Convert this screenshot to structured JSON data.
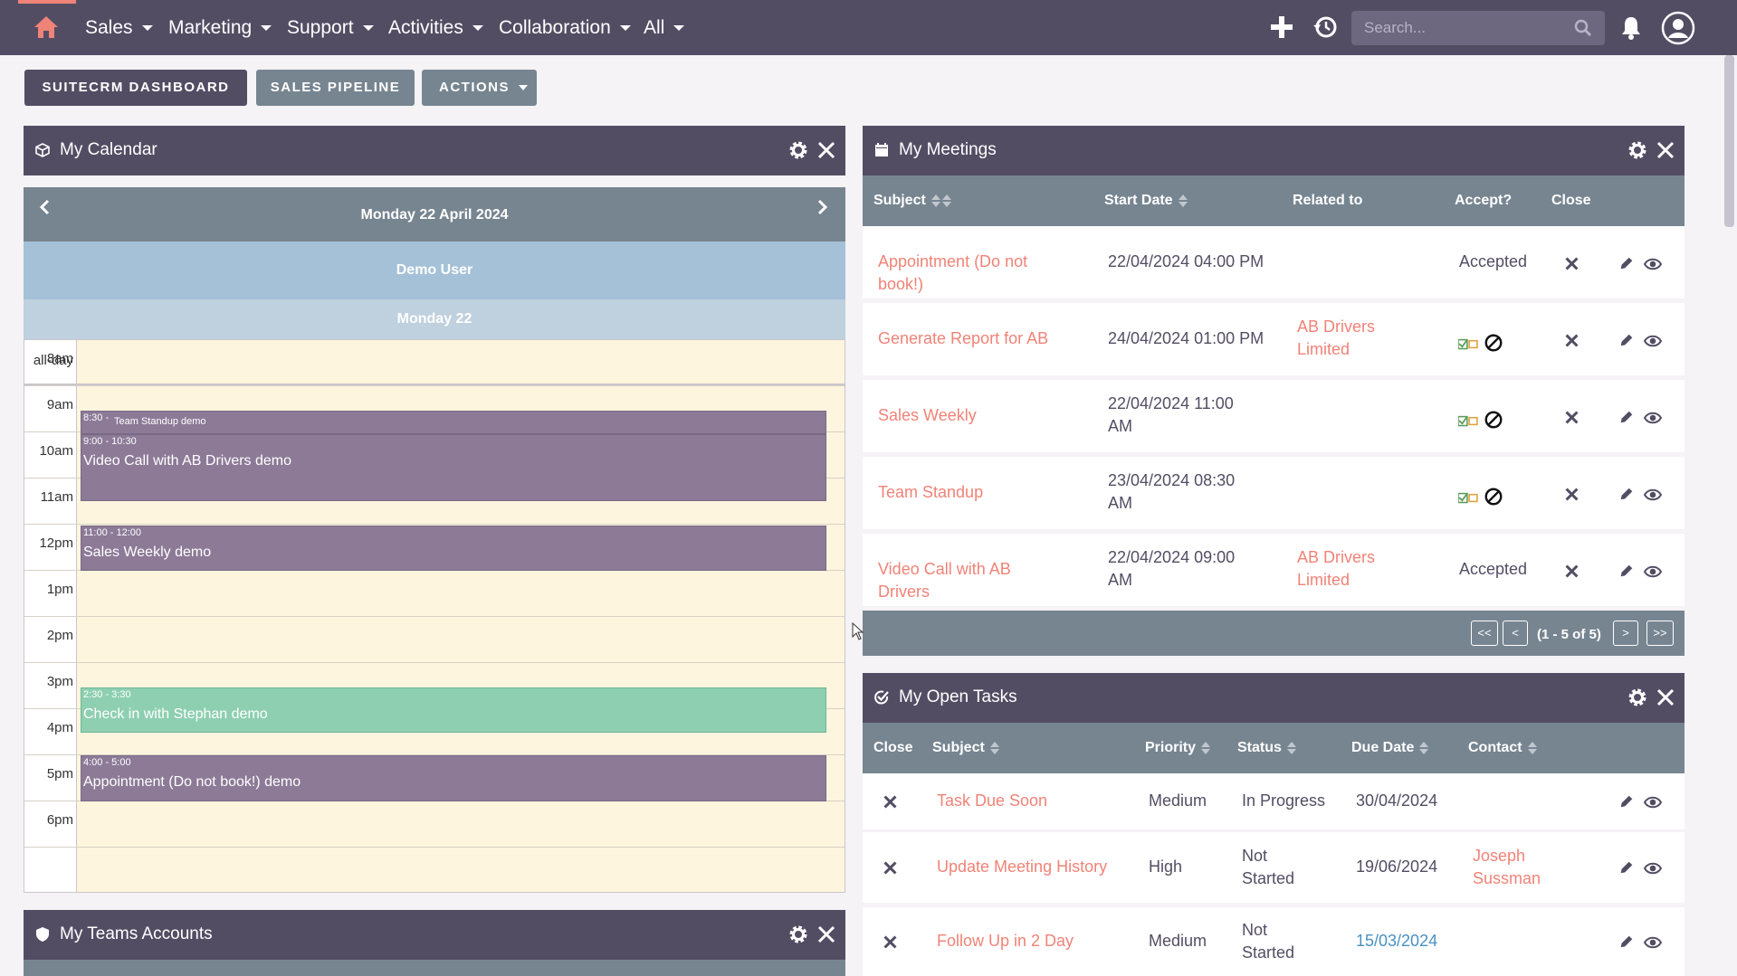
{
  "nav": {
    "menus": [
      "Sales",
      "Marketing",
      "Support",
      "Activities",
      "Collaboration",
      "All"
    ],
    "search_placeholder": "Search..."
  },
  "actions": {
    "dashboard": "SUITECRM DASHBOARD",
    "pipeline": "SALES PIPELINE",
    "actions": "ACTIONS"
  },
  "calendar": {
    "title": "My Calendar",
    "date": "Monday 22 April 2024",
    "user": "Demo User",
    "day": "Monday 22",
    "allday_label": "all-day",
    "hours": [
      "8am",
      "9am",
      "10am",
      "11am",
      "12pm",
      "1pm",
      "2pm",
      "3pm",
      "4pm",
      "5pm",
      "6pm"
    ],
    "events": [
      {
        "time": "8:30 -",
        "title": "Team Standup demo",
        "color": "#8c7a97"
      },
      {
        "time": "9:00 - 10:30",
        "title": "Video Call with AB Drivers demo",
        "color": "#8c7a97"
      },
      {
        "time": "11:00 - 12:00",
        "title": "Sales Weekly demo",
        "color": "#8c7a97"
      },
      {
        "time": "2:30 - 3:30",
        "title": "Check in with Stephan demo",
        "color": "#8ecfb1"
      },
      {
        "time": "4:00 - 5:00",
        "title": "Appointment (Do not book!) demo",
        "color": "#8c7a97"
      }
    ]
  },
  "meetings": {
    "title": "My Meetings",
    "columns": {
      "subject": "Subject",
      "start": "Start Date",
      "related": "Related to",
      "accept": "Accept?",
      "close": "Close"
    },
    "rows": [
      {
        "subject": "Appointment (Do not book!)",
        "start": "22/04/2024 04:00 PM",
        "related": "",
        "accept": "Accepted"
      },
      {
        "subject": "Generate Report for AB",
        "start": "24/04/2024 01:00 PM",
        "related": "AB Drivers Limited",
        "accept": ""
      },
      {
        "subject": "Sales Weekly",
        "start": "22/04/2024 11:00 AM",
        "related": "",
        "accept": ""
      },
      {
        "subject": "Team Standup",
        "start": "23/04/2024 08:30 AM",
        "related": "",
        "accept": ""
      },
      {
        "subject": "Video Call with AB Drivers",
        "start": "22/04/2024 09:00 AM",
        "related": "AB Drivers Limited",
        "accept": "Accepted"
      }
    ],
    "pager": {
      "first": "<<",
      "prev": "<",
      "count": "(1 - 5 of 5)",
      "next": ">",
      "last": ">>"
    }
  },
  "tasks": {
    "title": "My Open Tasks",
    "columns": {
      "close": "Close",
      "subject": "Subject",
      "priority": "Priority",
      "status": "Status",
      "due": "Due Date",
      "contact": "Contact"
    },
    "rows": [
      {
        "subject": "Task Due Soon",
        "priority": "Medium",
        "status": "In Progress",
        "due": "30/04/2024",
        "contact": ""
      },
      {
        "subject": "Update Meeting History",
        "priority": "High",
        "status": "Not Started",
        "due": "19/06/2024",
        "contact": "Joseph Sussman"
      },
      {
        "subject": "Follow Up in 2 Day",
        "priority": "Medium",
        "status": "Not Started",
        "due": "15/03/2024",
        "contact": ""
      }
    ]
  },
  "teams": {
    "title": "My Teams Accounts"
  },
  "colors": {
    "nav": "#534d64",
    "table_header": "#778591",
    "link": "#f08377",
    "overdue": "#4a90c2",
    "calendar_bg": "#fdf5dd"
  }
}
